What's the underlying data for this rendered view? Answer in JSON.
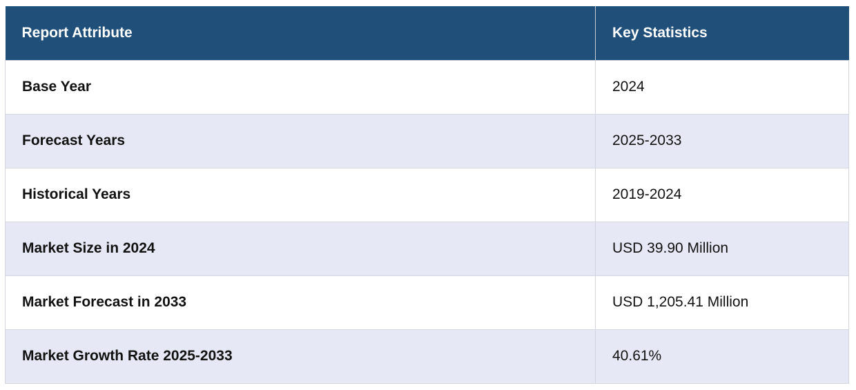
{
  "table": {
    "headers": [
      "Report Attribute",
      "Key Statistics"
    ],
    "rows": [
      {
        "attribute": "Base Year",
        "value": "2024"
      },
      {
        "attribute": "Forecast Years",
        "value": "2025-2033"
      },
      {
        "attribute": "Historical Years",
        "value": "2019-2024"
      },
      {
        "attribute": "Market Size in 2024",
        "value": "USD 39.90 Million"
      },
      {
        "attribute": "Market Forecast in 2033",
        "value": "USD 1,205.41 Million"
      },
      {
        "attribute": "Market Growth Rate 2025-2033",
        "value": "40.61%"
      }
    ]
  },
  "colors": {
    "header_bg": "#204f79",
    "header_text": "#ffffff",
    "row_alt_bg": "#e6e9f5",
    "row_bg": "#ffffff"
  }
}
